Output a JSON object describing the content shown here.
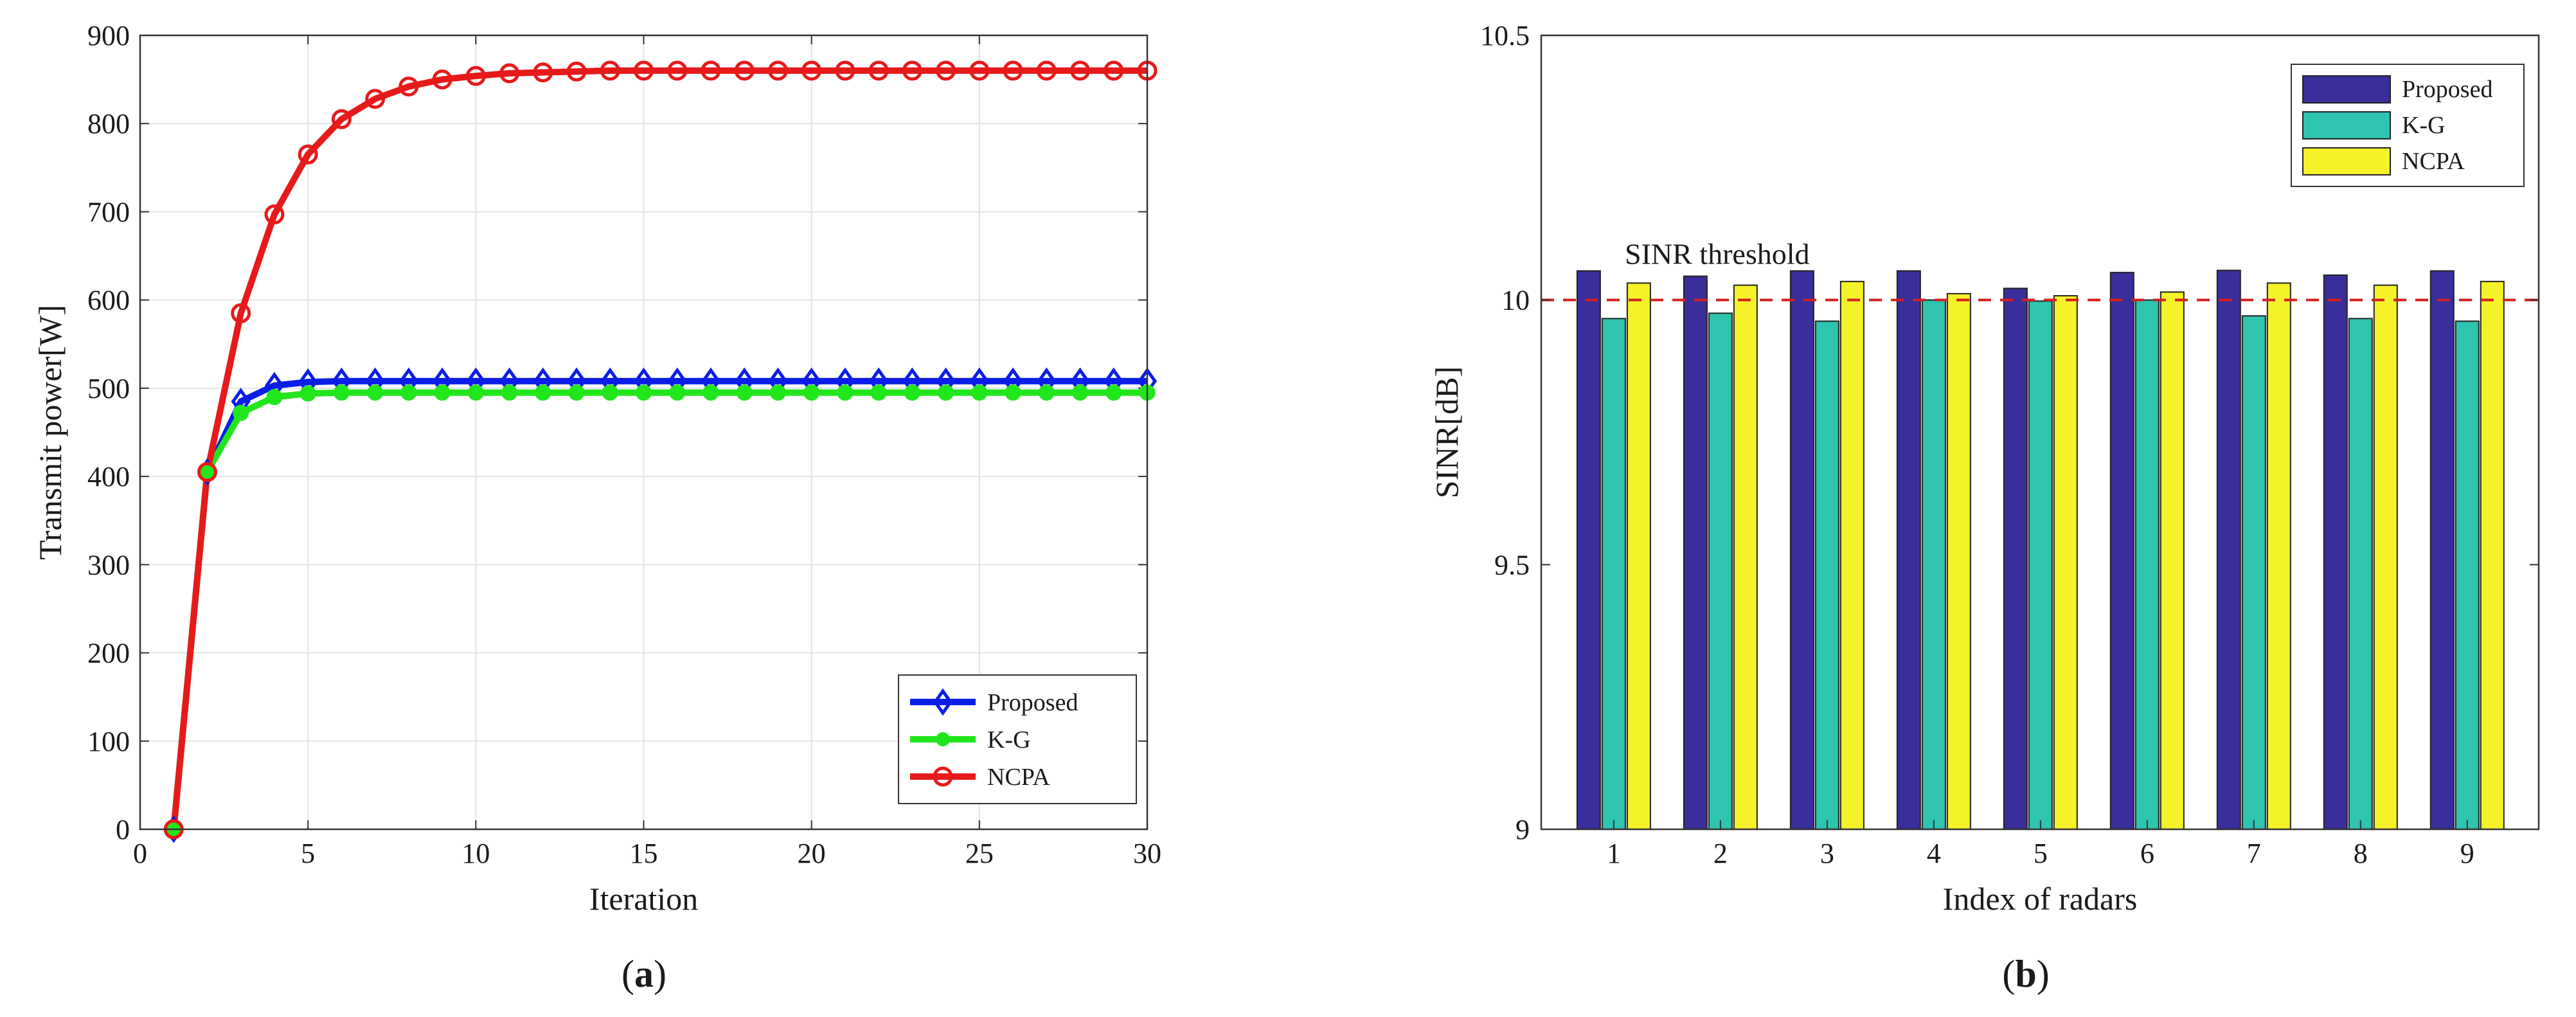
{
  "chart_data": [
    {
      "type": "line",
      "panel_label": "a",
      "xlabel": "Iteration",
      "ylabel": "Transmit power[W]",
      "xlim": [
        0,
        30
      ],
      "ylim": [
        0,
        900
      ],
      "xticks": [
        "0",
        "5",
        "10",
        "15",
        "20",
        "25",
        "30"
      ],
      "yticks": [
        "0",
        "100",
        "200",
        "300",
        "400",
        "500",
        "600",
        "700",
        "800",
        "900"
      ],
      "grid": true,
      "legend_position": "bottom-right",
      "x": [
        1,
        2,
        3,
        4,
        5,
        6,
        7,
        8,
        9,
        10,
        11,
        12,
        13,
        14,
        15,
        16,
        17,
        18,
        19,
        20,
        21,
        22,
        23,
        24,
        25,
        26,
        27,
        28,
        29,
        30
      ],
      "series": [
        {
          "name": "Proposed",
          "color": "#0a1ee6",
          "marker": "diamond",
          "values": [
            0,
            405,
            485,
            503,
            507,
            508,
            508,
            508,
            508,
            508,
            508,
            508,
            508,
            508,
            508,
            508,
            508,
            508,
            508,
            508,
            508,
            508,
            508,
            508,
            508,
            508,
            508,
            508,
            508,
            508
          ]
        },
        {
          "name": "K-G",
          "color": "#22e61c",
          "marker": "circle-filled",
          "values": [
            0,
            405,
            472,
            490,
            494,
            495,
            495,
            495,
            495,
            495,
            495,
            495,
            495,
            495,
            495,
            495,
            495,
            495,
            495,
            495,
            495,
            495,
            495,
            495,
            495,
            495,
            495,
            495,
            495,
            495
          ]
        },
        {
          "name": "NCPA",
          "color": "#e61a1a",
          "marker": "circle-open",
          "values": [
            0,
            405,
            585,
            697,
            765,
            805,
            828,
            842,
            850,
            854,
            857,
            858,
            859,
            860,
            860,
            860,
            860,
            860,
            860,
            860,
            860,
            860,
            860,
            860,
            860,
            860,
            860,
            860,
            860,
            860
          ]
        }
      ]
    },
    {
      "type": "bar",
      "panel_label": "b",
      "xlabel": "Index of radars",
      "ylabel": "SINR[dB]",
      "ylim": [
        9,
        10.5
      ],
      "yticks": [
        "9",
        "9.5",
        "10",
        "10.5"
      ],
      "categories": [
        "1",
        "2",
        "3",
        "4",
        "5",
        "6",
        "7",
        "8",
        "9"
      ],
      "grid": false,
      "legend_position": "top-right",
      "threshold": {
        "value": 10,
        "label": "SINR threshold",
        "color": "#d42020"
      },
      "series": [
        {
          "name": "Proposed",
          "color": "#3a2e9a",
          "values": [
            10.055,
            10.045,
            10.055,
            10.055,
            10.022,
            10.052,
            10.056,
            10.047,
            10.055
          ]
        },
        {
          "name": "K-G",
          "color": "#2ec4b0",
          "values": [
            9.965,
            9.975,
            9.96,
            10.0,
            9.998,
            10.0,
            9.97,
            9.965,
            9.96
          ]
        },
        {
          "name": "NCPA",
          "color": "#f5f22a",
          "values": [
            10.032,
            10.028,
            10.035,
            10.012,
            10.008,
            10.015,
            10.032,
            10.028,
            10.035
          ]
        }
      ]
    }
  ]
}
